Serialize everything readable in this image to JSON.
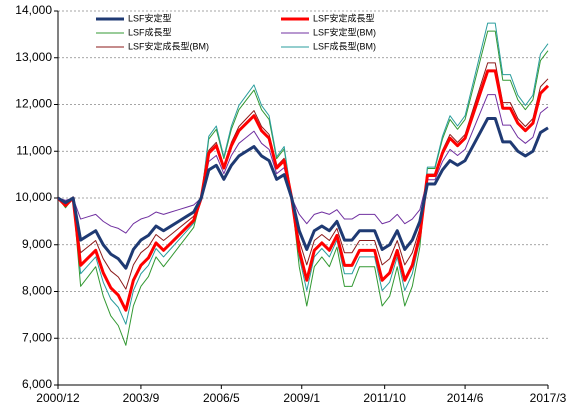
{
  "chart_data": {
    "type": "line",
    "x": [
      "2000/12",
      "2001/3",
      "2001/6",
      "2001/9",
      "2001/12",
      "2002/3",
      "2002/6",
      "2002/9",
      "2002/12",
      "2003/3",
      "2003/6",
      "2003/9",
      "2003/12",
      "2004/3",
      "2004/6",
      "2004/9",
      "2004/12",
      "2005/3",
      "2005/6",
      "2005/9",
      "2005/12",
      "2006/3",
      "2006/6",
      "2006/9",
      "2006/12",
      "2007/3",
      "2007/6",
      "2007/9",
      "2007/12",
      "2008/3",
      "2008/6",
      "2008/9",
      "2008/12",
      "2009/3",
      "2009/6",
      "2009/9",
      "2009/12",
      "2010/3",
      "2010/6",
      "2010/9",
      "2010/12",
      "2011/3",
      "2011/6",
      "2011/9",
      "2011/12",
      "2012/3",
      "2012/6",
      "2012/9",
      "2012/12",
      "2013/3",
      "2013/6",
      "2013/9",
      "2013/12",
      "2014/3",
      "2014/6",
      "2014/9",
      "2014/12",
      "2015/3",
      "2015/6",
      "2015/9",
      "2015/12",
      "2016/3",
      "2016/6",
      "2016/9",
      "2016/12",
      "2017/3"
    ],
    "xlim": [
      "2000/12",
      "2017/3"
    ],
    "xticks": [
      "2000/12",
      "2003/9",
      "2006/5",
      "2009/1",
      "2011/10",
      "2014/6",
      "2017/3"
    ],
    "ylim": [
      6000,
      14000
    ],
    "yticks": [
      {
        "value": 6000,
        "label": "6,000"
      },
      {
        "value": 7000,
        "label": "7,000"
      },
      {
        "value": 8000,
        "label": "8,000"
      },
      {
        "value": 9000,
        "label": "9,000"
      },
      {
        "value": 10000,
        "label": "10,000"
      },
      {
        "value": 11000,
        "label": "11,000"
      },
      {
        "value": 12000,
        "label": "12,000"
      },
      {
        "value": 13000,
        "label": "13,000"
      },
      {
        "value": 14000,
        "label": "14,000"
      }
    ],
    "grid": true,
    "legend": "upper-left",
    "series": [
      {
        "name": "LSF安定型",
        "color": "#1f3a73",
        "width": 3,
        "values": [
          10000,
          9900,
          10000,
          9100,
          9200,
          9300,
          9000,
          8800,
          8700,
          8500,
          8900,
          9100,
          9200,
          9400,
          9300,
          9400,
          9500,
          9600,
          9700,
          10000,
          10600,
          10700,
          10400,
          10700,
          10900,
          11000,
          11100,
          10900,
          10800,
          10400,
          10500,
          10000,
          9300,
          8900,
          9300,
          9400,
          9300,
          9500,
          9100,
          9100,
          9300,
          9300,
          9300,
          8900,
          9000,
          9300,
          8900,
          9100,
          9500,
          10300,
          10300,
          10600,
          10800,
          10700,
          10800,
          11100,
          11400,
          11700,
          11700,
          11200,
          11200,
          11000,
          10900,
          11000,
          11400,
          11500
        ]
      },
      {
        "name": "LSF安定成長型",
        "color": "#ff0000",
        "width": 3,
        "values": [
          10000,
          9840,
          10000,
          8560,
          8720,
          8880,
          8400,
          8080,
          7920,
          7600,
          8240,
          8560,
          8720,
          9040,
          8880,
          9040,
          9200,
          9360,
          9520,
          10000,
          10960,
          11120,
          10640,
          11120,
          11440,
          11600,
          11760,
          11440,
          11280,
          10640,
          10800,
          10000,
          8880,
          8240,
          8880,
          9040,
          8880,
          9200,
          8560,
          8560,
          8880,
          8880,
          8880,
          8240,
          8400,
          8880,
          8240,
          8560,
          9200,
          10480,
          10480,
          10960,
          11280,
          11120,
          11280,
          11760,
          12240,
          12720,
          12720,
          11920,
          11920,
          11600,
          11440,
          11600,
          12240,
          12400
        ]
      },
      {
        "name": "LSF成長型",
        "color": "#339933",
        "width": 1,
        "values": [
          10000,
          9790,
          10000,
          8110,
          8320,
          8530,
          7900,
          7480,
          7270,
          6850,
          7690,
          8110,
          8320,
          8740,
          8530,
          8740,
          8950,
          9160,
          9370,
          10000,
          11260,
          11470,
          10840,
          11470,
          11890,
          12100,
          12310,
          11890,
          11680,
          10840,
          11050,
          10000,
          8530,
          7690,
          8530,
          8740,
          8530,
          8950,
          8110,
          8110,
          8530,
          8530,
          8530,
          7690,
          7900,
          8530,
          7690,
          8110,
          8950,
          10630,
          10630,
          11260,
          11680,
          11470,
          11680,
          12310,
          12940,
          13570,
          13570,
          12520,
          12520,
          12100,
          11890,
          12100,
          12940,
          13150
        ]
      },
      {
        "name": "LSF安定型(BM)",
        "color": "#7030a0",
        "width": 1,
        "values": [
          10000,
          9950,
          10000,
          9550,
          9600,
          9650,
          9500,
          9400,
          9350,
          9250,
          9450,
          9550,
          9600,
          9700,
          9650,
          9700,
          9750,
          9800,
          9850,
          10000,
          10780,
          10910,
          10520,
          10910,
          11170,
          11300,
          11430,
          11170,
          11040,
          10520,
          10650,
          10000,
          9650,
          9450,
          9650,
          9700,
          9650,
          9750,
          9550,
          9550,
          9650,
          9650,
          9650,
          9450,
          9500,
          9650,
          9450,
          9550,
          9750,
          10390,
          10390,
          10780,
          11040,
          10910,
          11040,
          11430,
          11820,
          12210,
          12210,
          11560,
          11560,
          11300,
          11170,
          11300,
          11820,
          11950
        ]
      },
      {
        "name": "LSF安定成長型(BM)",
        "color": "#8b1a1a",
        "width": 1,
        "values": [
          10000,
          9870,
          10000,
          8830,
          8960,
          9090,
          8700,
          8440,
          8310,
          8050,
          8570,
          8830,
          8960,
          9220,
          9090,
          9220,
          9350,
          9480,
          9610,
          10000,
          11020,
          11190,
          10680,
          11190,
          11530,
          11700,
          11870,
          11530,
          11360,
          10680,
          10850,
          10000,
          9090,
          8570,
          9090,
          9220,
          9090,
          9350,
          8830,
          8830,
          9090,
          9090,
          9090,
          8570,
          8700,
          9090,
          8570,
          8830,
          9350,
          10510,
          10510,
          11020,
          11360,
          11190,
          11360,
          11870,
          12380,
          12890,
          12890,
          12040,
          12040,
          11700,
          11530,
          11700,
          12380,
          12550
        ]
      },
      {
        "name": "LSF成長型(BM)",
        "color": "#2a9d9d",
        "width": 1,
        "values": [
          10000,
          9820,
          10000,
          8380,
          8560,
          8740,
          8200,
          7840,
          7660,
          7300,
          8020,
          8380,
          8560,
          8920,
          8740,
          8920,
          9100,
          9280,
          9460,
          10000,
          11320,
          11540,
          10880,
          11540,
          11980,
          12200,
          12420,
          11980,
          11760,
          10880,
          11100,
          10000,
          8740,
          8020,
          8740,
          8920,
          8740,
          9100,
          8380,
          8380,
          8740,
          8740,
          8740,
          8020,
          8200,
          8740,
          8020,
          8380,
          9100,
          10660,
          10660,
          11320,
          11760,
          11540,
          11760,
          12420,
          13080,
          13740,
          13740,
          12640,
          12640,
          12200,
          11980,
          12200,
          13080,
          13300
        ]
      }
    ]
  }
}
